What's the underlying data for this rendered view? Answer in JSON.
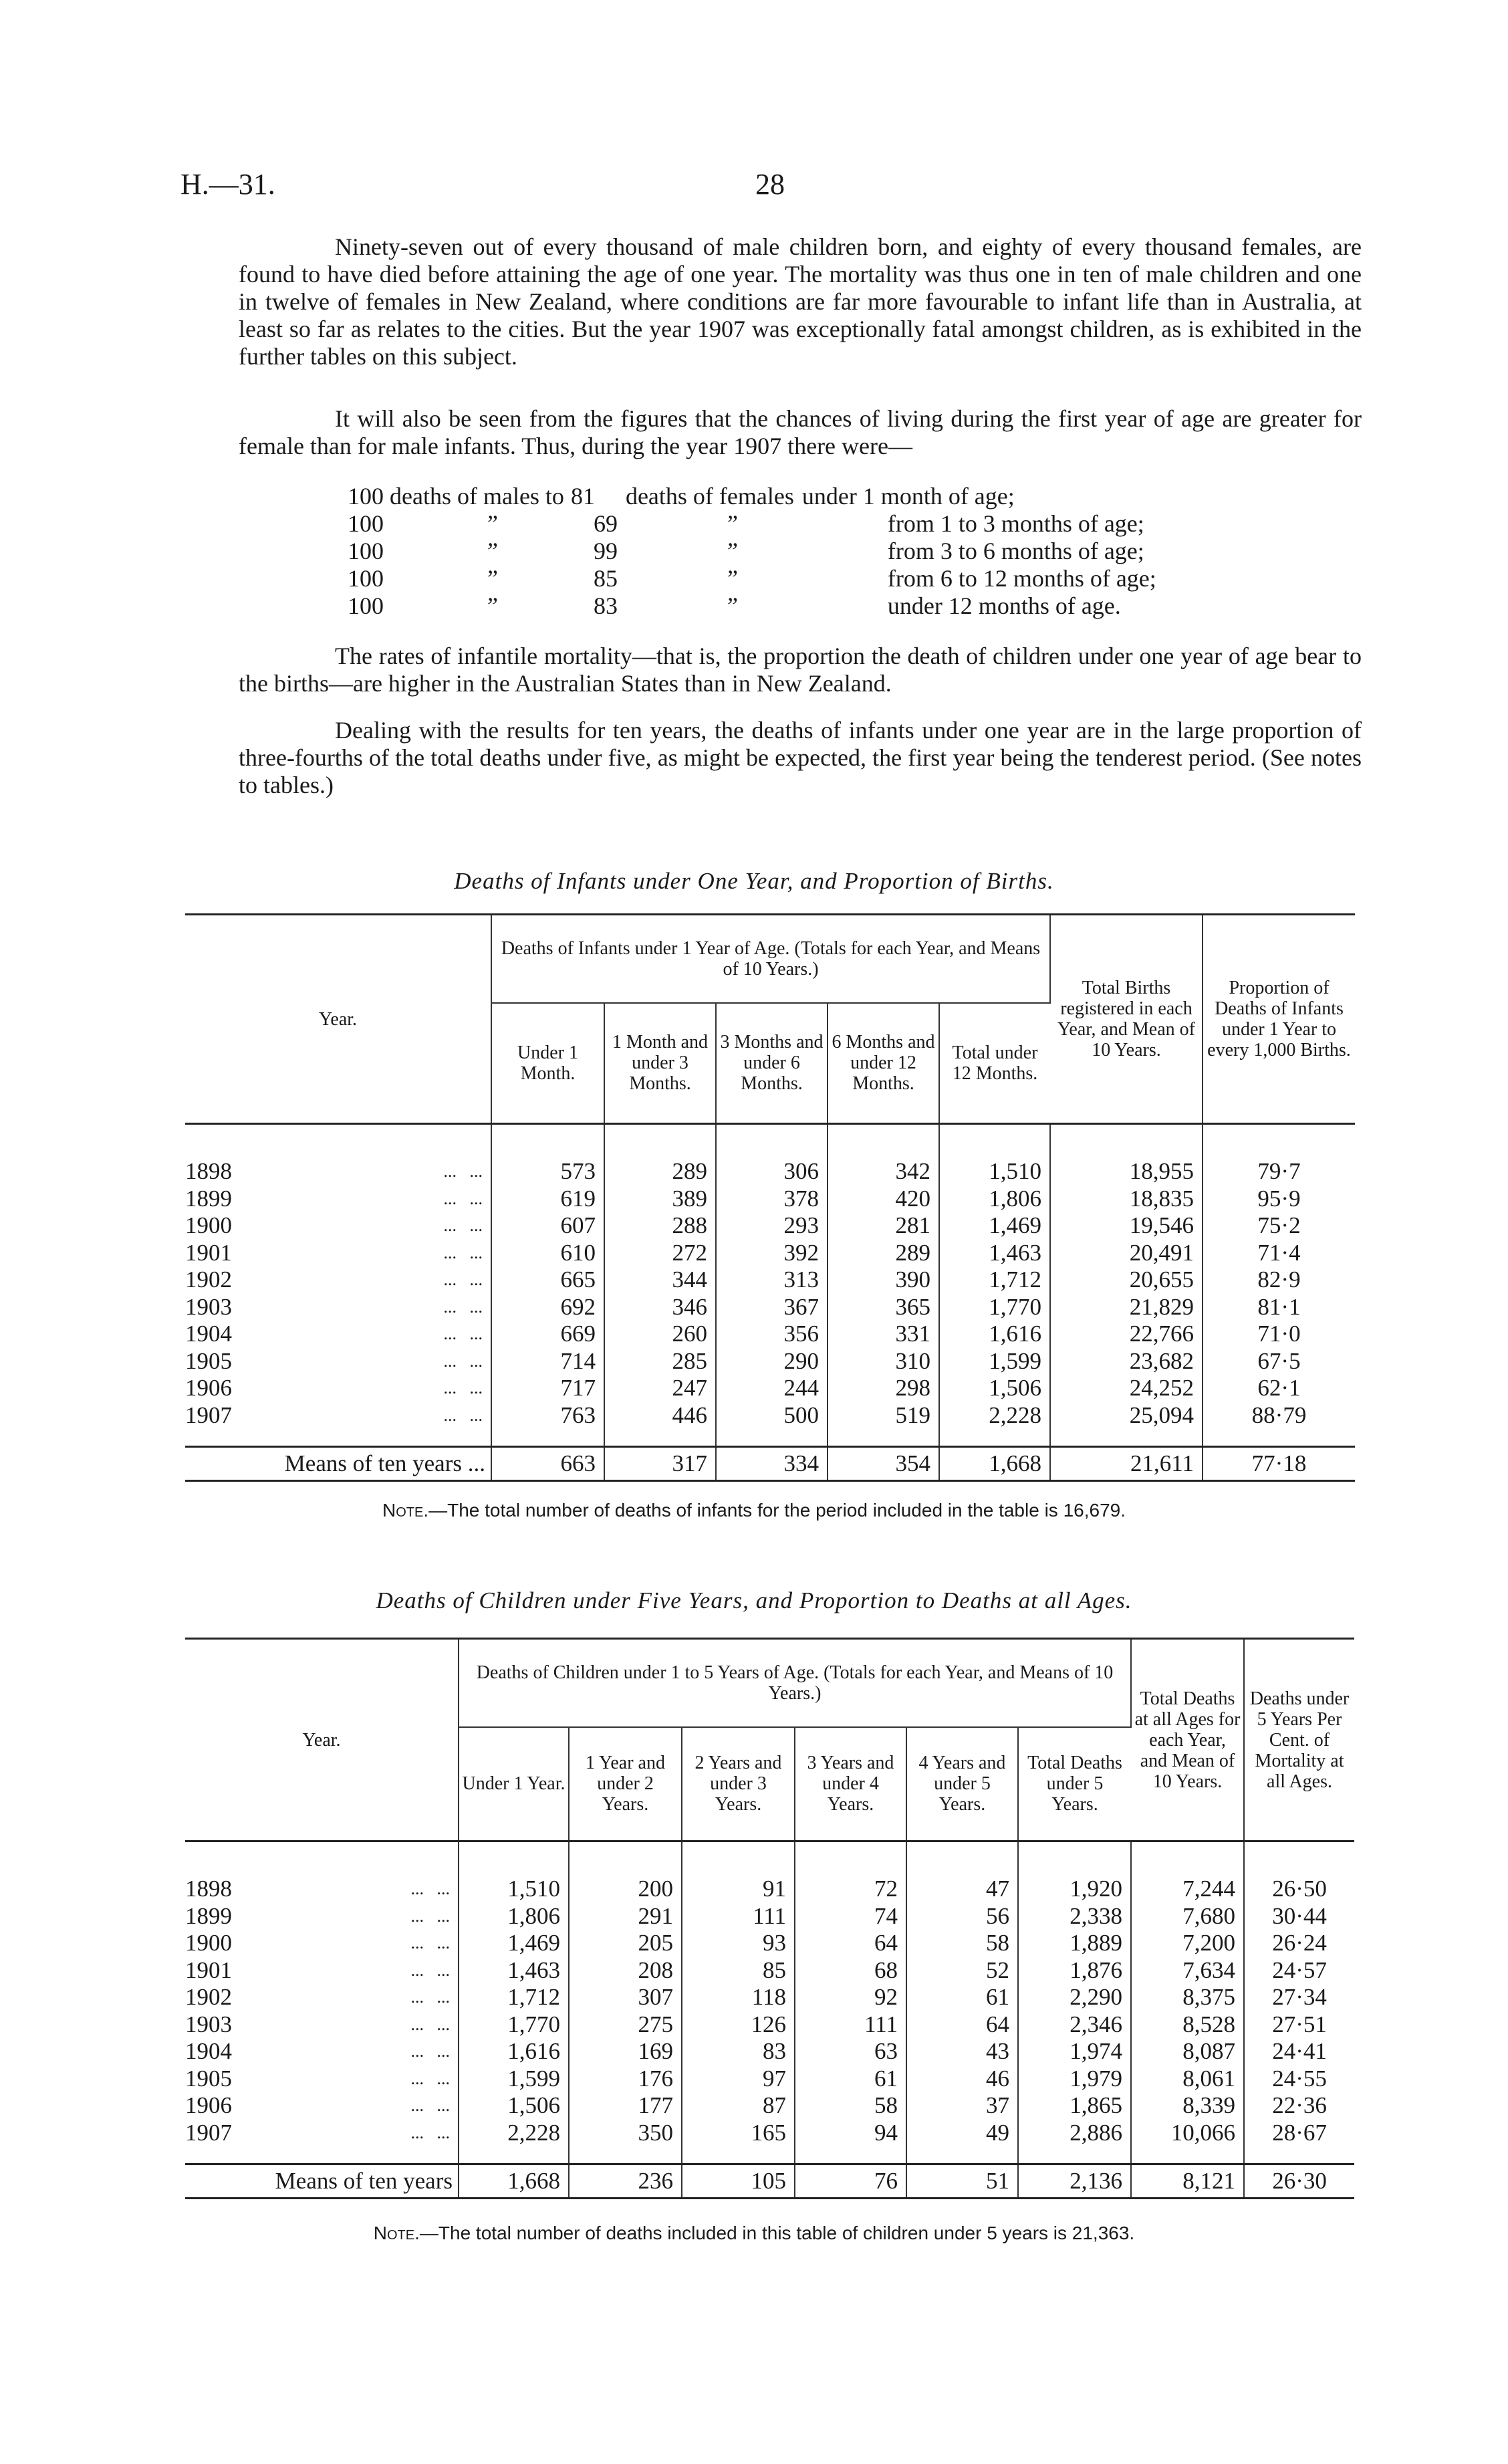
{
  "header": {
    "ref": "H.—31.",
    "page": "28"
  },
  "paragraphs": [
    "Ninety-seven out of every thousand of male children born, and eighty of every thousand females, are found to have died before attaining the age of one year. The mortality was thus one in ten of male children and one in twelve of females in New Zealand, where conditions are far more favourable to infant life than in Australia, at least so far as relates to the cities. But the year 1907 was exceptionally fatal amongst children, as is exhibited in the further tables on this subject.",
    "It will also be seen from the figures that the chances of living during the first year of age are greater for female than for male infants. Thus, during the year 1907 there were—",
    "The rates of infantile mortality—that is, the proportion the death of children under one year of age bear to the births—are higher in the Australian States than in New Zealand.",
    "Dealing with the results for ten years, the deaths of infants under one year are in the large proportion of three-fourths of the total deaths under five, as might be expected, the first year being the tenderest period. (See notes to tables.)"
  ],
  "comparison_list": [
    {
      "a": "100 deaths of males to",
      "b": "81",
      "c": "deaths of females",
      "d": "under 1 month of age;"
    },
    {
      "a": "100",
      "ditto1": "”",
      "b": "69",
      "c": "”",
      "d": "from 1 to 3 months of age;"
    },
    {
      "a": "100",
      "ditto1": "”",
      "b": "99",
      "c": "”",
      "d": "from 3 to 6 months of age;"
    },
    {
      "a": "100",
      "ditto1": "”",
      "b": "85",
      "c": "”",
      "d": "from 6 to 12 months of age;"
    },
    {
      "a": "100",
      "ditto1": "”",
      "b": "83",
      "c": "”",
      "d": "under 12 months of age."
    }
  ],
  "table1": {
    "title": "Deaths of Infants under One Year, and Proportion of Births.",
    "year_header": "Year.",
    "group_header": "Deaths of Infants under 1 Year of Age. (Totals for each Year, and Means of 10 Years.)",
    "sub_headers": [
      "Under 1 Month.",
      "1 Month and under 3 Months.",
      "3 Months and under 6 Months.",
      "6 Months and under 12 Months.",
      "Total under 12 Months."
    ],
    "births_header": "Total Births registered in each Year, and Mean of 10 Years.",
    "proportion_header": "Proportion of Deaths of Infants under 1 Year to every 1,000 Births.",
    "rows": [
      [
        "1898",
        "573",
        "289",
        "306",
        "342",
        "1,510",
        "18,955",
        "79·7"
      ],
      [
        "1899",
        "619",
        "389",
        "378",
        "420",
        "1,806",
        "18,835",
        "95·9"
      ],
      [
        "1900",
        "607",
        "288",
        "293",
        "281",
        "1,469",
        "19,546",
        "75·2"
      ],
      [
        "1901",
        "610",
        "272",
        "392",
        "289",
        "1,463",
        "20,491",
        "71·4"
      ],
      [
        "1902",
        "665",
        "344",
        "313",
        "390",
        "1,712",
        "20,655",
        "82·9"
      ],
      [
        "1903",
        "692",
        "346",
        "367",
        "365",
        "1,770",
        "21,829",
        "81·1"
      ],
      [
        "1904",
        "669",
        "260",
        "356",
        "331",
        "1,616",
        "22,766",
        "71·0"
      ],
      [
        "1905",
        "714",
        "285",
        "290",
        "310",
        "1,599",
        "23,682",
        "67·5"
      ],
      [
        "1906",
        "717",
        "247",
        "244",
        "298",
        "1,506",
        "24,252",
        "62·1"
      ],
      [
        "1907",
        "763",
        "446",
        "500",
        "519",
        "2,228",
        "25,094",
        "88·79"
      ]
    ],
    "means": [
      "Means of ten years ...",
      "663",
      "317",
      "334",
      "354",
      "1,668",
      "21,611",
      "77·18"
    ],
    "note_label": "Note.",
    "note": "—The total number of deaths of infants for the period included in the table is 16,679."
  },
  "table2": {
    "title": "Deaths of Children under Five Years, and Proportion to Deaths at all Ages.",
    "year_header": "Year.",
    "group_header": "Deaths of Children under 1 to 5 Years of Age. (Totals for each Year, and Means of 10 Years.)",
    "sub_headers": [
      "Under 1 Year.",
      "1 Year and under 2 Years.",
      "2 Years and under 3 Years.",
      "3 Years and under 4 Years.",
      "4 Years and under 5 Years.",
      "Total Deaths under 5 Years."
    ],
    "total_header": "Total Deaths at all Ages for each Year, and Mean of 10 Years.",
    "percent_header": "Deaths under 5 Years Per Cent. of Mortality at all Ages.",
    "rows": [
      [
        "1898",
        "1,510",
        "200",
        "91",
        "72",
        "47",
        "1,920",
        "7,244",
        "26·50"
      ],
      [
        "1899",
        "1,806",
        "291",
        "111",
        "74",
        "56",
        "2,338",
        "7,680",
        "30·44"
      ],
      [
        "1900",
        "1,469",
        "205",
        "93",
        "64",
        "58",
        "1,889",
        "7,200",
        "26·24"
      ],
      [
        "1901",
        "1,463",
        "208",
        "85",
        "68",
        "52",
        "1,876",
        "7,634",
        "24·57"
      ],
      [
        "1902",
        "1,712",
        "307",
        "118",
        "92",
        "61",
        "2,290",
        "8,375",
        "27·34"
      ],
      [
        "1903",
        "1,770",
        "275",
        "126",
        "111",
        "64",
        "2,346",
        "8,528",
        "27·51"
      ],
      [
        "1904",
        "1,616",
        "169",
        "83",
        "63",
        "43",
        "1,974",
        "8,087",
        "24·41"
      ],
      [
        "1905",
        "1,599",
        "176",
        "97",
        "61",
        "46",
        "1,979",
        "8,061",
        "24·55"
      ],
      [
        "1906",
        "1,506",
        "177",
        "87",
        "58",
        "37",
        "1,865",
        "8,339",
        "22·36"
      ],
      [
        "1907",
        "2,228",
        "350",
        "165",
        "94",
        "49",
        "2,886",
        "10,066",
        "28·67"
      ]
    ],
    "means": [
      "Means of ten years",
      "1,668",
      "236",
      "105",
      "76",
      "51",
      "2,136",
      "8,121",
      "26·30"
    ],
    "note_label": "Note.",
    "note": "—The total number of deaths included in this table of children under 5 years is 21,363."
  },
  "dots": "...   ..."
}
